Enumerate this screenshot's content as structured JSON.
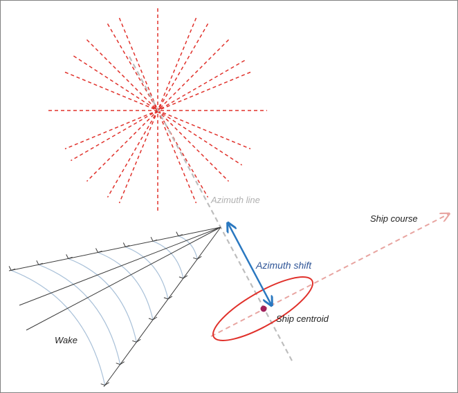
{
  "labels": {
    "azimuth_line": "Azimuth line",
    "ship_course": "Ship course",
    "azimuth_shift": "Azimuth shift",
    "ship_centroid": "Ship centroid",
    "wake": "Wake"
  },
  "colors": {
    "star_burst": "#e0302a",
    "azimuth_line": "#bdbdbd",
    "ship_course": "#e8a4a0",
    "azimuth_shift": "#2a78c0",
    "azimuth_shift_text": "#2f5597",
    "ship_ellipse": "#e0302a",
    "ship_centroid": "#a0205a",
    "wake_arms": "#3a3a3a",
    "wake_waves": "#a8c0d8",
    "label_text": "#222222",
    "azimuth_label": "#b0b0b0"
  }
}
